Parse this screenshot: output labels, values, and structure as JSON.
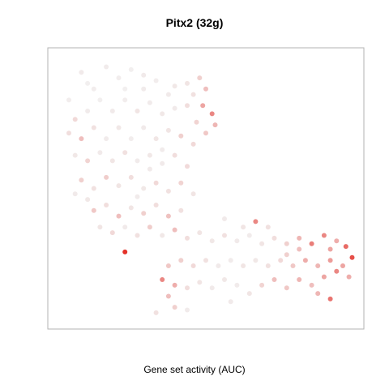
{
  "chart_data": {
    "type": "scatter",
    "title": "Pitx2 (32g)",
    "xlabel": "Gene set activity (AUC)",
    "ylabel": "",
    "grid": false,
    "legend": "none",
    "color_scale": {
      "low": "#f0f0f0",
      "high": "#e3261e"
    },
    "note": "",
    "series": [
      {
        "points": [
          {
            "x": 0.1,
            "y": 0.92,
            "v": 0.05
          },
          {
            "x": 0.12,
            "y": 0.88,
            "v": 0.02
          },
          {
            "x": 0.18,
            "y": 0.94,
            "v": 0.04
          },
          {
            "x": 0.22,
            "y": 0.9,
            "v": 0.03
          },
          {
            "x": 0.26,
            "y": 0.93,
            "v": 0.02
          },
          {
            "x": 0.3,
            "y": 0.91,
            "v": 0.05
          },
          {
            "x": 0.34,
            "y": 0.89,
            "v": 0.03
          },
          {
            "x": 0.4,
            "y": 0.87,
            "v": 0.06
          },
          {
            "x": 0.46,
            "y": 0.84,
            "v": 0.1
          },
          {
            "x": 0.5,
            "y": 0.86,
            "v": 0.3
          },
          {
            "x": 0.49,
            "y": 0.8,
            "v": 0.45
          },
          {
            "x": 0.52,
            "y": 0.77,
            "v": 0.55
          },
          {
            "x": 0.53,
            "y": 0.73,
            "v": 0.35
          },
          {
            "x": 0.5,
            "y": 0.7,
            "v": 0.25
          },
          {
            "x": 0.47,
            "y": 0.74,
            "v": 0.18
          },
          {
            "x": 0.44,
            "y": 0.8,
            "v": 0.12
          },
          {
            "x": 0.06,
            "y": 0.82,
            "v": 0.03
          },
          {
            "x": 0.08,
            "y": 0.75,
            "v": 0.15
          },
          {
            "x": 0.12,
            "y": 0.78,
            "v": 0.04
          },
          {
            "x": 0.16,
            "y": 0.82,
            "v": 0.02
          },
          {
            "x": 0.2,
            "y": 0.78,
            "v": 0.05
          },
          {
            "x": 0.24,
            "y": 0.82,
            "v": 0.03
          },
          {
            "x": 0.28,
            "y": 0.78,
            "v": 0.08
          },
          {
            "x": 0.32,
            "y": 0.81,
            "v": 0.04
          },
          {
            "x": 0.36,
            "y": 0.77,
            "v": 0.06
          },
          {
            "x": 0.4,
            "y": 0.79,
            "v": 0.05
          },
          {
            "x": 0.06,
            "y": 0.7,
            "v": 0.12
          },
          {
            "x": 0.1,
            "y": 0.68,
            "v": 0.3
          },
          {
            "x": 0.14,
            "y": 0.72,
            "v": 0.1
          },
          {
            "x": 0.18,
            "y": 0.68,
            "v": 0.04
          },
          {
            "x": 0.22,
            "y": 0.72,
            "v": 0.06
          },
          {
            "x": 0.26,
            "y": 0.68,
            "v": 0.03
          },
          {
            "x": 0.3,
            "y": 0.72,
            "v": 0.05
          },
          {
            "x": 0.34,
            "y": 0.68,
            "v": 0.07
          },
          {
            "x": 0.38,
            "y": 0.71,
            "v": 0.08
          },
          {
            "x": 0.42,
            "y": 0.69,
            "v": 0.2
          },
          {
            "x": 0.46,
            "y": 0.66,
            "v": 0.15
          },
          {
            "x": 0.08,
            "y": 0.62,
            "v": 0.06
          },
          {
            "x": 0.12,
            "y": 0.6,
            "v": 0.18
          },
          {
            "x": 0.16,
            "y": 0.63,
            "v": 0.05
          },
          {
            "x": 0.2,
            "y": 0.6,
            "v": 0.07
          },
          {
            "x": 0.24,
            "y": 0.63,
            "v": 0.1
          },
          {
            "x": 0.28,
            "y": 0.6,
            "v": 0.04
          },
          {
            "x": 0.32,
            "y": 0.62,
            "v": 0.06
          },
          {
            "x": 0.36,
            "y": 0.59,
            "v": 0.05
          },
          {
            "x": 0.4,
            "y": 0.62,
            "v": 0.12
          },
          {
            "x": 0.44,
            "y": 0.58,
            "v": 0.14
          },
          {
            "x": 0.1,
            "y": 0.53,
            "v": 0.2
          },
          {
            "x": 0.14,
            "y": 0.5,
            "v": 0.1
          },
          {
            "x": 0.18,
            "y": 0.54,
            "v": 0.22
          },
          {
            "x": 0.22,
            "y": 0.51,
            "v": 0.08
          },
          {
            "x": 0.26,
            "y": 0.54,
            "v": 0.12
          },
          {
            "x": 0.3,
            "y": 0.5,
            "v": 0.06
          },
          {
            "x": 0.34,
            "y": 0.52,
            "v": 0.15
          },
          {
            "x": 0.38,
            "y": 0.49,
            "v": 0.1
          },
          {
            "x": 0.42,
            "y": 0.52,
            "v": 0.18
          },
          {
            "x": 0.46,
            "y": 0.48,
            "v": 0.08
          },
          {
            "x": 0.14,
            "y": 0.42,
            "v": 0.25
          },
          {
            "x": 0.18,
            "y": 0.44,
            "v": 0.12
          },
          {
            "x": 0.22,
            "y": 0.4,
            "v": 0.3
          },
          {
            "x": 0.26,
            "y": 0.43,
            "v": 0.08
          },
          {
            "x": 0.3,
            "y": 0.41,
            "v": 0.2
          },
          {
            "x": 0.34,
            "y": 0.44,
            "v": 0.12
          },
          {
            "x": 0.38,
            "y": 0.4,
            "v": 0.28
          },
          {
            "x": 0.42,
            "y": 0.42,
            "v": 0.1
          },
          {
            "x": 0.2,
            "y": 0.34,
            "v": 0.15
          },
          {
            "x": 0.24,
            "y": 0.36,
            "v": 0.05
          },
          {
            "x": 0.28,
            "y": 0.33,
            "v": 0.1
          },
          {
            "x": 0.32,
            "y": 0.36,
            "v": 0.22
          },
          {
            "x": 0.36,
            "y": 0.33,
            "v": 0.06
          },
          {
            "x": 0.4,
            "y": 0.35,
            "v": 0.3
          },
          {
            "x": 0.44,
            "y": 0.32,
            "v": 0.12
          },
          {
            "x": 0.48,
            "y": 0.34,
            "v": 0.08
          },
          {
            "x": 0.52,
            "y": 0.31,
            "v": 0.06
          },
          {
            "x": 0.56,
            "y": 0.33,
            "v": 0.1
          },
          {
            "x": 0.6,
            "y": 0.31,
            "v": 0.05
          },
          {
            "x": 0.64,
            "y": 0.33,
            "v": 0.04
          },
          {
            "x": 0.68,
            "y": 0.3,
            "v": 0.08
          },
          {
            "x": 0.72,
            "y": 0.32,
            "v": 0.12
          },
          {
            "x": 0.76,
            "y": 0.3,
            "v": 0.2
          },
          {
            "x": 0.8,
            "y": 0.32,
            "v": 0.35
          },
          {
            "x": 0.84,
            "y": 0.3,
            "v": 0.6
          },
          {
            "x": 0.88,
            "y": 0.33,
            "v": 0.55
          },
          {
            "x": 0.92,
            "y": 0.31,
            "v": 0.4
          },
          {
            "x": 0.95,
            "y": 0.29,
            "v": 0.7
          },
          {
            "x": 0.97,
            "y": 0.25,
            "v": 0.85
          },
          {
            "x": 0.94,
            "y": 0.22,
            "v": 0.45
          },
          {
            "x": 0.9,
            "y": 0.24,
            "v": 0.5
          },
          {
            "x": 0.86,
            "y": 0.22,
            "v": 0.35
          },
          {
            "x": 0.82,
            "y": 0.24,
            "v": 0.4
          },
          {
            "x": 0.78,
            "y": 0.22,
            "v": 0.25
          },
          {
            "x": 0.74,
            "y": 0.24,
            "v": 0.15
          },
          {
            "x": 0.7,
            "y": 0.22,
            "v": 0.1
          },
          {
            "x": 0.66,
            "y": 0.24,
            "v": 0.06
          },
          {
            "x": 0.62,
            "y": 0.22,
            "v": 0.08
          },
          {
            "x": 0.58,
            "y": 0.24,
            "v": 0.04
          },
          {
            "x": 0.54,
            "y": 0.22,
            "v": 0.05
          },
          {
            "x": 0.5,
            "y": 0.24,
            "v": 0.1
          },
          {
            "x": 0.46,
            "y": 0.22,
            "v": 0.15
          },
          {
            "x": 0.42,
            "y": 0.24,
            "v": 0.2
          },
          {
            "x": 0.38,
            "y": 0.22,
            "v": 0.25
          },
          {
            "x": 0.36,
            "y": 0.17,
            "v": 0.55
          },
          {
            "x": 0.4,
            "y": 0.15,
            "v": 0.4
          },
          {
            "x": 0.38,
            "y": 0.11,
            "v": 0.3
          },
          {
            "x": 0.4,
            "y": 0.07,
            "v": 0.2
          },
          {
            "x": 0.44,
            "y": 0.14,
            "v": 0.12
          },
          {
            "x": 0.48,
            "y": 0.16,
            "v": 0.08
          },
          {
            "x": 0.52,
            "y": 0.14,
            "v": 0.05
          },
          {
            "x": 0.56,
            "y": 0.17,
            "v": 0.06
          },
          {
            "x": 0.6,
            "y": 0.15,
            "v": 0.04
          },
          {
            "x": 0.64,
            "y": 0.12,
            "v": 0.08
          },
          {
            "x": 0.68,
            "y": 0.15,
            "v": 0.18
          },
          {
            "x": 0.72,
            "y": 0.17,
            "v": 0.3
          },
          {
            "x": 0.76,
            "y": 0.14,
            "v": 0.25
          },
          {
            "x": 0.8,
            "y": 0.17,
            "v": 0.35
          },
          {
            "x": 0.84,
            "y": 0.15,
            "v": 0.3
          },
          {
            "x": 0.88,
            "y": 0.18,
            "v": 0.45
          },
          {
            "x": 0.9,
            "y": 0.1,
            "v": 0.65
          },
          {
            "x": 0.92,
            "y": 0.2,
            "v": 0.55
          },
          {
            "x": 0.96,
            "y": 0.18,
            "v": 0.4
          },
          {
            "x": 0.66,
            "y": 0.38,
            "v": 0.55
          },
          {
            "x": 0.7,
            "y": 0.36,
            "v": 0.1
          },
          {
            "x": 0.62,
            "y": 0.36,
            "v": 0.08
          },
          {
            "x": 0.56,
            "y": 0.39,
            "v": 0.05
          },
          {
            "x": 0.24,
            "y": 0.27,
            "v": 1.0
          },
          {
            "x": 0.34,
            "y": 0.05,
            "v": 0.1
          },
          {
            "x": 0.44,
            "y": 0.06,
            "v": 0.04
          },
          {
            "x": 0.58,
            "y": 0.09,
            "v": 0.05
          },
          {
            "x": 0.86,
            "y": 0.12,
            "v": 0.35
          },
          {
            "x": 0.8,
            "y": 0.28,
            "v": 0.3
          },
          {
            "x": 0.9,
            "y": 0.28,
            "v": 0.45
          },
          {
            "x": 0.76,
            "y": 0.26,
            "v": 0.2
          },
          {
            "x": 0.12,
            "y": 0.46,
            "v": 0.06
          },
          {
            "x": 0.08,
            "y": 0.48,
            "v": 0.05
          },
          {
            "x": 0.16,
            "y": 0.36,
            "v": 0.08
          },
          {
            "x": 0.28,
            "y": 0.47,
            "v": 0.04
          },
          {
            "x": 0.32,
            "y": 0.57,
            "v": 0.05
          },
          {
            "x": 0.36,
            "y": 0.64,
            "v": 0.04
          },
          {
            "x": 0.14,
            "y": 0.86,
            "v": 0.03
          },
          {
            "x": 0.24,
            "y": 0.86,
            "v": 0.02
          },
          {
            "x": 0.3,
            "y": 0.86,
            "v": 0.04
          },
          {
            "x": 0.38,
            "y": 0.84,
            "v": 0.05
          },
          {
            "x": 0.44,
            "y": 0.88,
            "v": 0.08
          },
          {
            "x": 0.48,
            "y": 0.9,
            "v": 0.2
          }
        ]
      }
    ],
    "xlim": [
      0,
      1
    ],
    "ylim": [
      0,
      1
    ]
  }
}
